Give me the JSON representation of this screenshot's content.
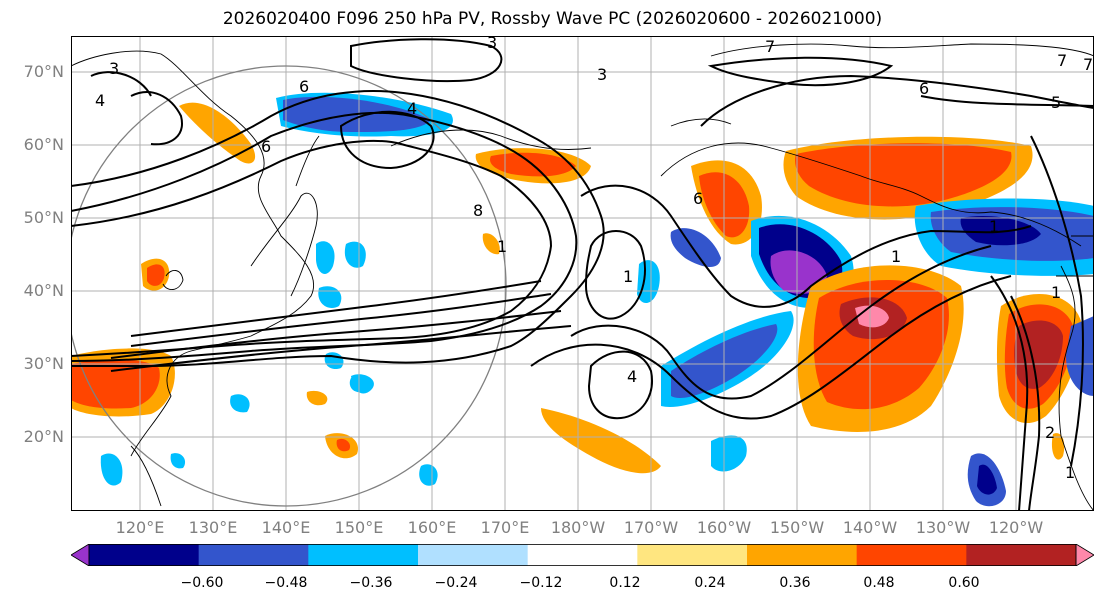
{
  "title": "2026020400 F096 250 hPa PV, Rossby Wave PC (2026020600 - 2026021000)",
  "map": {
    "lat_labels": [
      "70°N",
      "60°N",
      "50°N",
      "40°N",
      "30°N",
      "20°N"
    ],
    "lon_labels": [
      "120°E",
      "130°E",
      "140°E",
      "150°E",
      "160°E",
      "170°E",
      "180°W",
      "170°W",
      "160°W",
      "150°W",
      "140°W",
      "130°W",
      "120°W"
    ],
    "contour_labels": [
      "3",
      "3",
      "4",
      "6",
      "4",
      "6",
      "8",
      "1",
      "1",
      "4",
      "7",
      "6",
      "5",
      "7",
      "7",
      "6",
      "1",
      "2",
      "1",
      "1",
      "1",
      "3"
    ]
  },
  "colorbar": {
    "ticks": [
      "−0.60",
      "−0.48",
      "−0.36",
      "−0.24",
      "−0.12",
      "0.12",
      "0.24",
      "0.36",
      "0.48",
      "0.60"
    ],
    "colors": [
      "#9933cc",
      "#00008b",
      "#3355cc",
      "#00bfff",
      "#b0e0ff",
      "#ffffff",
      "#ffe680",
      "#ffa500",
      "#ff4500",
      "#b22222",
      "#ff88aa"
    ]
  }
}
